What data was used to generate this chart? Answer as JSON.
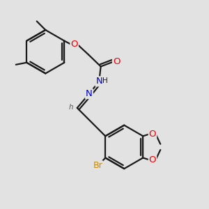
{
  "background_color": "#e2e2e2",
  "bond_color": "#1a1a1a",
  "atom_colors": {
    "O": "#ee0000",
    "N": "#0000cc",
    "Br": "#cc8800",
    "H_gray": "#555555",
    "C": "#1a1a1a"
  },
  "bond_width": 1.6,
  "dbo": 0.012,
  "font_size": 8.5,
  "figsize": [
    3.0,
    3.0
  ],
  "dpi": 100
}
